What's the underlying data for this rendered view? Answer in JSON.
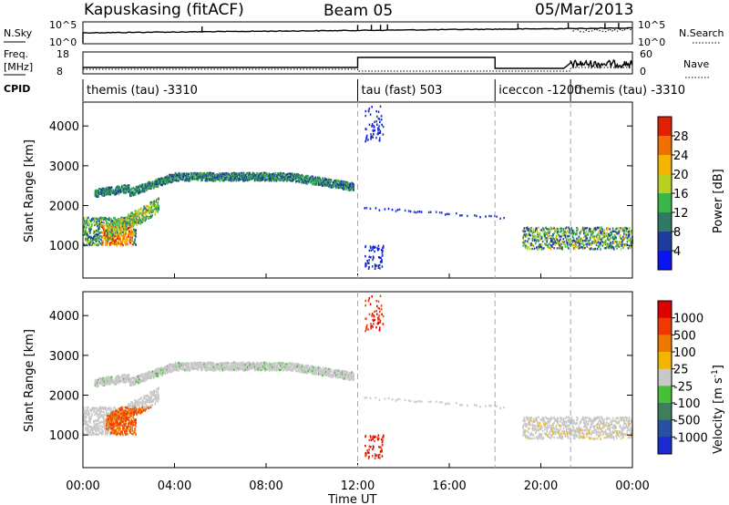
{
  "header": {
    "title": "Kapuskasing (fitACF)",
    "beam": "Beam 05",
    "date": "05/Mar/2013"
  },
  "top_panels": {
    "nsky_label": "N.Sky",
    "nsky_ticks": [
      "10^5",
      "10^0"
    ],
    "nsearch_label": "N.Search",
    "nsearch_ticks": [
      "10^5",
      "10^0"
    ],
    "freq_label": "Freq.",
    "freq_unit": "[MHz]",
    "freq_ticks": [
      "18",
      "8"
    ],
    "nave_label": "Nave",
    "nave_ticks": [
      "60",
      "0"
    ],
    "cpid_label": "CPID",
    "cpid_segments": [
      {
        "label": "themis (tau) -3310",
        "start": 0.0,
        "end": 12.0
      },
      {
        "label": "tau (fast) 503",
        "start": 12.0,
        "end": 18.0
      },
      {
        "label": "iceccon -1200",
        "start": 18.0,
        "end": 21.3
      },
      {
        "label": "themis (tau) -3310",
        "start": 21.3,
        "end": 24.0
      }
    ]
  },
  "chart_data": [
    {
      "type": "heatmap",
      "quantity": "power",
      "ylabel": "Slant Range [km]",
      "yticks": [
        1000,
        2000,
        3000,
        4000
      ],
      "ylim": [
        180,
        4600
      ],
      "xlim": [
        0,
        24
      ],
      "colorbar_label": "Power [dB]",
      "colorbar_ticks": [
        "4",
        "8",
        "12",
        "16",
        "20",
        "24",
        "28"
      ],
      "colorbar_range": [
        0,
        32
      ],
      "colors": [
        "#0a14f0",
        "#1f3c9e",
        "#2e7a64",
        "#3bb54a",
        "#b8d020",
        "#f5b400",
        "#f07000",
        "#e02000"
      ]
    },
    {
      "type": "heatmap",
      "quantity": "velocity",
      "ylabel": "Slant Range [km]",
      "yticks": [
        1000,
        2000,
        3000,
        4000
      ],
      "ylim": [
        180,
        4600
      ],
      "xlim": [
        0,
        24
      ],
      "xticks": [
        "00:00",
        "04:00",
        "08:00",
        "12:00",
        "16:00",
        "20:00",
        "00:00"
      ],
      "xlabel": "Time UT",
      "colorbar_label": "Velocity [m s^-1]",
      "colorbar_ticks": [
        "1000",
        "500",
        "100",
        "25",
        "-25",
        "-100",
        "-500",
        "-1000"
      ],
      "colors": [
        "#1a2ad0",
        "#2a4fa6",
        "#3d7e5c",
        "#46c038",
        "#c8c8c8",
        "#f5b400",
        "#f07800",
        "#ee3a00",
        "#e00000"
      ]
    }
  ],
  "colors": {
    "dashed_line": "#aaaaaa",
    "ground_scatter": "#c8c8c8"
  }
}
